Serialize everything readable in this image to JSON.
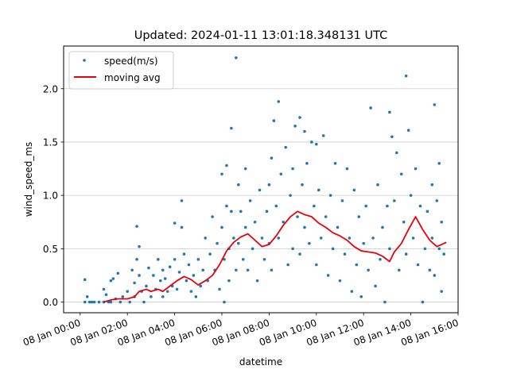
{
  "chart_data": {
    "type": "scatter",
    "title": "Updated: 2024-01-11 13:01:18.348131 UTC",
    "xlabel": "datetime",
    "ylabel": "wind_speed_ms",
    "x_unit": "hours on 08 Jan",
    "xlim": [
      -0.7,
      16.0
    ],
    "ylim": [
      -0.1,
      2.4
    ],
    "grid": "horizontal",
    "x_ticks": [
      {
        "value": 0,
        "label": "08 Jan 00:00"
      },
      {
        "value": 2,
        "label": "08 Jan 02:00"
      },
      {
        "value": 4,
        "label": "08 Jan 04:00"
      },
      {
        "value": 6,
        "label": "08 Jan 06:00"
      },
      {
        "value": 8,
        "label": "08 Jan 08:00"
      },
      {
        "value": 10,
        "label": "08 Jan 10:00"
      },
      {
        "value": 12,
        "label": "08 Jan 12:00"
      },
      {
        "value": 14,
        "label": "08 Jan 14:00"
      },
      {
        "value": 16,
        "label": "08 Jan 16:00"
      }
    ],
    "y_ticks": [
      {
        "value": 0.0,
        "label": "0.0"
      },
      {
        "value": 0.5,
        "label": "0.5"
      },
      {
        "value": 1.0,
        "label": "1.0"
      },
      {
        "value": 1.5,
        "label": "1.5"
      },
      {
        "value": 2.0,
        "label": "2.0"
      }
    ],
    "legend": {
      "position": "top-left"
    },
    "series": [
      {
        "name": "speed(m/s)",
        "kind": "scatter",
        "color": "#1f77b4",
        "points": [
          [
            0.2,
            0.21
          ],
          [
            0.2,
            0.0
          ],
          [
            0.3,
            0.05
          ],
          [
            0.4,
            0.0
          ],
          [
            0.5,
            0.0
          ],
          [
            0.6,
            0.0
          ],
          [
            0.8,
            0.0
          ],
          [
            1.0,
            0.0
          ],
          [
            1.0,
            0.12
          ],
          [
            1.1,
            0.07
          ],
          [
            1.2,
            0.0
          ],
          [
            1.3,
            0.2
          ],
          [
            1.3,
            0.0
          ],
          [
            1.4,
            0.22
          ],
          [
            1.5,
            0.03
          ],
          [
            1.6,
            0.27
          ],
          [
            1.7,
            0.0
          ],
          [
            1.8,
            0.05
          ],
          [
            2.0,
            0.1
          ],
          [
            2.1,
            0.0
          ],
          [
            2.2,
            0.3
          ],
          [
            2.3,
            0.18
          ],
          [
            2.3,
            0.05
          ],
          [
            2.4,
            0.71
          ],
          [
            2.4,
            0.4
          ],
          [
            2.5,
            0.52
          ],
          [
            2.5,
            0.25
          ],
          [
            2.6,
            0.1
          ],
          [
            2.7,
            0.0
          ],
          [
            2.8,
            0.15
          ],
          [
            2.9,
            0.32
          ],
          [
            3.0,
            0.05
          ],
          [
            3.1,
            0.25
          ],
          [
            3.2,
            0.12
          ],
          [
            3.3,
            0.4
          ],
          [
            3.4,
            0.2
          ],
          [
            3.5,
            0.3
          ],
          [
            3.5,
            0.05
          ],
          [
            3.6,
            0.22
          ],
          [
            3.7,
            0.1
          ],
          [
            3.8,
            0.33
          ],
          [
            3.9,
            0.15
          ],
          [
            4.0,
            0.74
          ],
          [
            4.0,
            0.4
          ],
          [
            4.1,
            0.12
          ],
          [
            4.2,
            0.28
          ],
          [
            4.3,
            0.95
          ],
          [
            4.3,
            0.7
          ],
          [
            4.4,
            0.45
          ],
          [
            4.5,
            0.2
          ],
          [
            4.6,
            0.35
          ],
          [
            4.7,
            0.1
          ],
          [
            4.8,
            0.25
          ],
          [
            4.9,
            0.05
          ],
          [
            5.0,
            0.4
          ],
          [
            5.1,
            0.15
          ],
          [
            5.2,
            0.3
          ],
          [
            5.3,
            0.6
          ],
          [
            5.4,
            0.2
          ],
          [
            5.5,
            0.45
          ],
          [
            5.6,
            0.8
          ],
          [
            5.7,
            0.3
          ],
          [
            5.8,
            0.55
          ],
          [
            5.9,
            0.12
          ],
          [
            6.0,
            1.2
          ],
          [
            6.0,
            0.7
          ],
          [
            6.1,
            0.4
          ],
          [
            6.1,
            0.0
          ],
          [
            6.2,
            1.28
          ],
          [
            6.2,
            0.9
          ],
          [
            6.3,
            0.5
          ],
          [
            6.3,
            0.2
          ],
          [
            6.4,
            1.63
          ],
          [
            6.4,
            0.85
          ],
          [
            6.5,
            0.6
          ],
          [
            6.6,
            2.29
          ],
          [
            6.6,
            0.3
          ],
          [
            6.7,
            1.1
          ],
          [
            6.7,
            0.55
          ],
          [
            6.8,
            0.85
          ],
          [
            6.9,
            0.4
          ],
          [
            7.0,
            1.25
          ],
          [
            7.0,
            0.7
          ],
          [
            7.1,
            0.3
          ],
          [
            7.2,
            0.95
          ],
          [
            7.3,
            0.5
          ],
          [
            7.4,
            0.75
          ],
          [
            7.5,
            0.2
          ],
          [
            7.6,
            1.05
          ],
          [
            7.7,
            0.6
          ],
          [
            7.8,
            0.4
          ],
          [
            7.9,
            0.85
          ],
          [
            8.0,
            1.1
          ],
          [
            8.0,
            0.55
          ],
          [
            8.1,
            1.35
          ],
          [
            8.1,
            0.3
          ],
          [
            8.2,
            1.7
          ],
          [
            8.3,
            0.9
          ],
          [
            8.4,
            1.88
          ],
          [
            8.4,
            0.6
          ],
          [
            8.5,
            1.2
          ],
          [
            8.6,
            0.75
          ],
          [
            8.7,
            1.45
          ],
          [
            8.8,
            0.35
          ],
          [
            8.9,
            1.0
          ],
          [
            9.0,
            1.25
          ],
          [
            9.0,
            0.5
          ],
          [
            9.1,
            1.65
          ],
          [
            9.2,
            0.8
          ],
          [
            9.3,
            1.73
          ],
          [
            9.3,
            0.45
          ],
          [
            9.4,
            1.1
          ],
          [
            9.5,
            1.6
          ],
          [
            9.5,
            0.7
          ],
          [
            9.6,
            1.3
          ],
          [
            9.7,
            0.55
          ],
          [
            9.8,
            1.5
          ],
          [
            9.9,
            0.9
          ],
          [
            10.0,
            1.48
          ],
          [
            10.0,
            0.35
          ],
          [
            10.1,
            1.05
          ],
          [
            10.2,
            0.6
          ],
          [
            10.3,
            1.56
          ],
          [
            10.4,
            0.8
          ],
          [
            10.5,
            0.25
          ],
          [
            10.6,
            1.0
          ],
          [
            10.7,
            0.5
          ],
          [
            10.8,
            1.3
          ],
          [
            10.9,
            0.7
          ],
          [
            11.0,
            0.2
          ],
          [
            11.1,
            0.95
          ],
          [
            11.2,
            0.45
          ],
          [
            11.3,
            1.25
          ],
          [
            11.4,
            0.6
          ],
          [
            11.5,
            0.1
          ],
          [
            11.6,
            1.05
          ],
          [
            11.7,
            0.35
          ],
          [
            11.8,
            0.8
          ],
          [
            11.9,
            0.05
          ],
          [
            12.0,
            0.55
          ],
          [
            12.1,
            0.9
          ],
          [
            12.2,
            0.3
          ],
          [
            12.3,
            1.82
          ],
          [
            12.4,
            0.6
          ],
          [
            12.5,
            0.15
          ],
          [
            12.6,
            1.1
          ],
          [
            12.7,
            0.4
          ],
          [
            12.8,
            0.7
          ],
          [
            12.9,
            0.0
          ],
          [
            13.0,
            0.9
          ],
          [
            13.1,
            1.78
          ],
          [
            13.1,
            0.5
          ],
          [
            13.2,
            1.55
          ],
          [
            13.3,
            0.95
          ],
          [
            13.4,
            1.4
          ],
          [
            13.5,
            0.3
          ],
          [
            13.6,
            1.2
          ],
          [
            13.7,
            0.75
          ],
          [
            13.8,
            2.12
          ],
          [
            13.8,
            0.45
          ],
          [
            13.9,
            1.61
          ],
          [
            14.0,
            1.0
          ],
          [
            14.1,
            0.6
          ],
          [
            14.2,
            1.25
          ],
          [
            14.3,
            0.35
          ],
          [
            14.4,
            0.9
          ],
          [
            14.5,
            0.0
          ],
          [
            14.6,
            0.5
          ],
          [
            14.7,
            0.85
          ],
          [
            14.8,
            0.3
          ],
          [
            14.9,
            1.1
          ],
          [
            14.9,
            0.6
          ],
          [
            15.0,
            1.85
          ],
          [
            15.0,
            0.25
          ],
          [
            15.1,
            0.95
          ],
          [
            15.2,
            1.3
          ],
          [
            15.2,
            0.5
          ],
          [
            15.3,
            0.75
          ],
          [
            15.3,
            0.1
          ],
          [
            15.4,
            0.45
          ]
        ]
      },
      {
        "name": "moving avg",
        "kind": "line",
        "color": "#e8000b",
        "points": [
          [
            1.0,
            0.0
          ],
          [
            1.3,
            0.02
          ],
          [
            1.6,
            0.03
          ],
          [
            2.0,
            0.03
          ],
          [
            2.3,
            0.05
          ],
          [
            2.5,
            0.1
          ],
          [
            2.8,
            0.12
          ],
          [
            3.0,
            0.1
          ],
          [
            3.3,
            0.12
          ],
          [
            3.5,
            0.1
          ],
          [
            3.8,
            0.15
          ],
          [
            4.1,
            0.2
          ],
          [
            4.4,
            0.24
          ],
          [
            4.7,
            0.21
          ],
          [
            5.0,
            0.16
          ],
          [
            5.3,
            0.2
          ],
          [
            5.6,
            0.25
          ],
          [
            5.9,
            0.35
          ],
          [
            6.2,
            0.48
          ],
          [
            6.5,
            0.56
          ],
          [
            6.8,
            0.61
          ],
          [
            7.1,
            0.64
          ],
          [
            7.4,
            0.58
          ],
          [
            7.7,
            0.52
          ],
          [
            8.0,
            0.54
          ],
          [
            8.3,
            0.62
          ],
          [
            8.6,
            0.72
          ],
          [
            8.9,
            0.8
          ],
          [
            9.2,
            0.85
          ],
          [
            9.5,
            0.82
          ],
          [
            9.8,
            0.8
          ],
          [
            10.1,
            0.74
          ],
          [
            10.4,
            0.7
          ],
          [
            10.7,
            0.65
          ],
          [
            11.0,
            0.62
          ],
          [
            11.3,
            0.58
          ],
          [
            11.6,
            0.52
          ],
          [
            11.9,
            0.48
          ],
          [
            12.2,
            0.47
          ],
          [
            12.5,
            0.46
          ],
          [
            12.8,
            0.43
          ],
          [
            13.1,
            0.38
          ],
          [
            13.3,
            0.47
          ],
          [
            13.6,
            0.55
          ],
          [
            13.9,
            0.68
          ],
          [
            14.2,
            0.8
          ],
          [
            14.5,
            0.68
          ],
          [
            14.8,
            0.58
          ],
          [
            15.1,
            0.52
          ],
          [
            15.4,
            0.55
          ],
          [
            15.5,
            0.56
          ]
        ]
      }
    ]
  }
}
